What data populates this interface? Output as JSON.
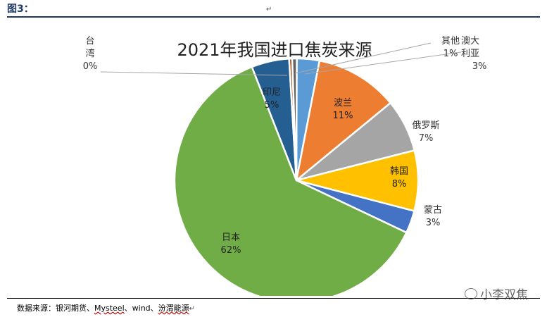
{
  "header": {
    "figure_label": "图3："
  },
  "footer": {
    "source_prefix": "数据来源：",
    "source_items": [
      "银河期货",
      "Mysteel",
      "wind",
      "汾渭能源"
    ],
    "sep": "、"
  },
  "watermark": {
    "text": "小李双焦",
    "icon": "wechat-icon"
  },
  "chart_data": {
    "type": "pie",
    "title": "2021年我国进口焦炭来源",
    "slices": [
      {
        "name": "澳大利亚",
        "value": 3,
        "label": "3%",
        "color": "#5b9bd5"
      },
      {
        "name": "波兰",
        "value": 11,
        "label": "11%",
        "color": "#ed7d31"
      },
      {
        "name": "俄罗斯",
        "value": 7,
        "label": "7%",
        "color": "#a5a5a5"
      },
      {
        "name": "韩国",
        "value": 8,
        "label": "8%",
        "color": "#ffc000"
      },
      {
        "name": "蒙古",
        "value": 3,
        "label": "3%",
        "color": "#4472c4"
      },
      {
        "name": "日本",
        "value": 62,
        "label": "62%",
        "color": "#70ad47"
      },
      {
        "name": "印尼",
        "value": 5,
        "label": "5%",
        "color": "#255e91"
      },
      {
        "name": "台湾",
        "value": 0.4,
        "label": "0%",
        "color": "#9e480e"
      },
      {
        "name": "其他",
        "value": 0.6,
        "label": "1%",
        "color": "#636363"
      }
    ],
    "legend": "none"
  }
}
